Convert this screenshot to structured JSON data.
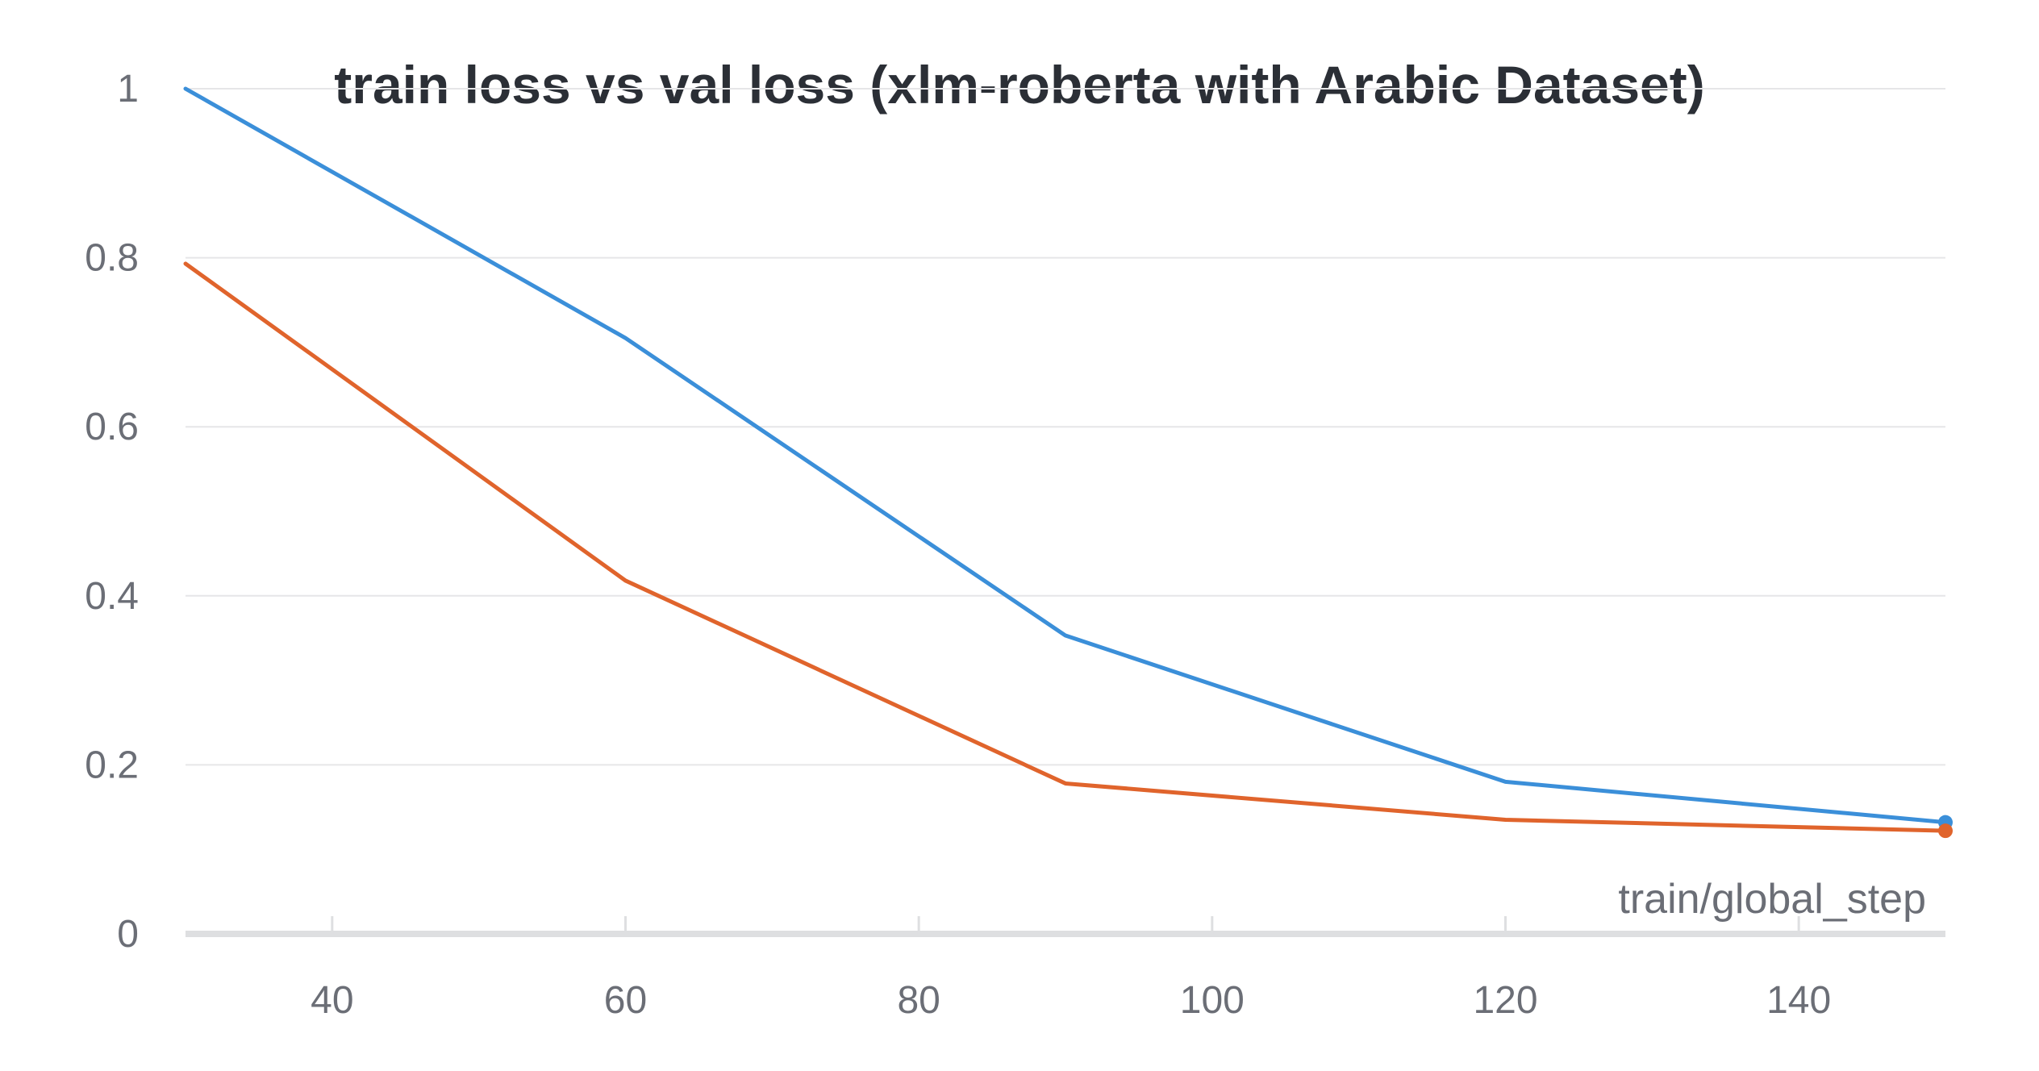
{
  "chart_data": {
    "type": "line",
    "title": "train loss vs val loss (xlm-roberta with Arabic Dataset)",
    "xlabel": "train/global_step",
    "ylabel": "",
    "xlim": [
      30,
      150
    ],
    "ylim": [
      0,
      1
    ],
    "xticks": [
      40,
      60,
      80,
      100,
      120,
      140
    ],
    "yticks": [
      0,
      0.2,
      0.4,
      0.6,
      0.8,
      1
    ],
    "ytick_labels": [
      "0",
      "0.2",
      "0.4",
      "0.6",
      "0.8",
      "1"
    ],
    "grid": "horizontal",
    "legend": "none",
    "series": [
      {
        "color": "#3b8fd9",
        "x": [
          30,
          60,
          90,
          120,
          150
        ],
        "y": [
          1.0,
          0.705,
          0.353,
          0.18,
          0.132
        ],
        "end_marker": true
      },
      {
        "color": "#e0642c",
        "x": [
          30,
          60,
          90,
          120,
          150
        ],
        "y": [
          0.793,
          0.418,
          0.178,
          0.135,
          0.122
        ],
        "end_marker": true
      }
    ]
  }
}
